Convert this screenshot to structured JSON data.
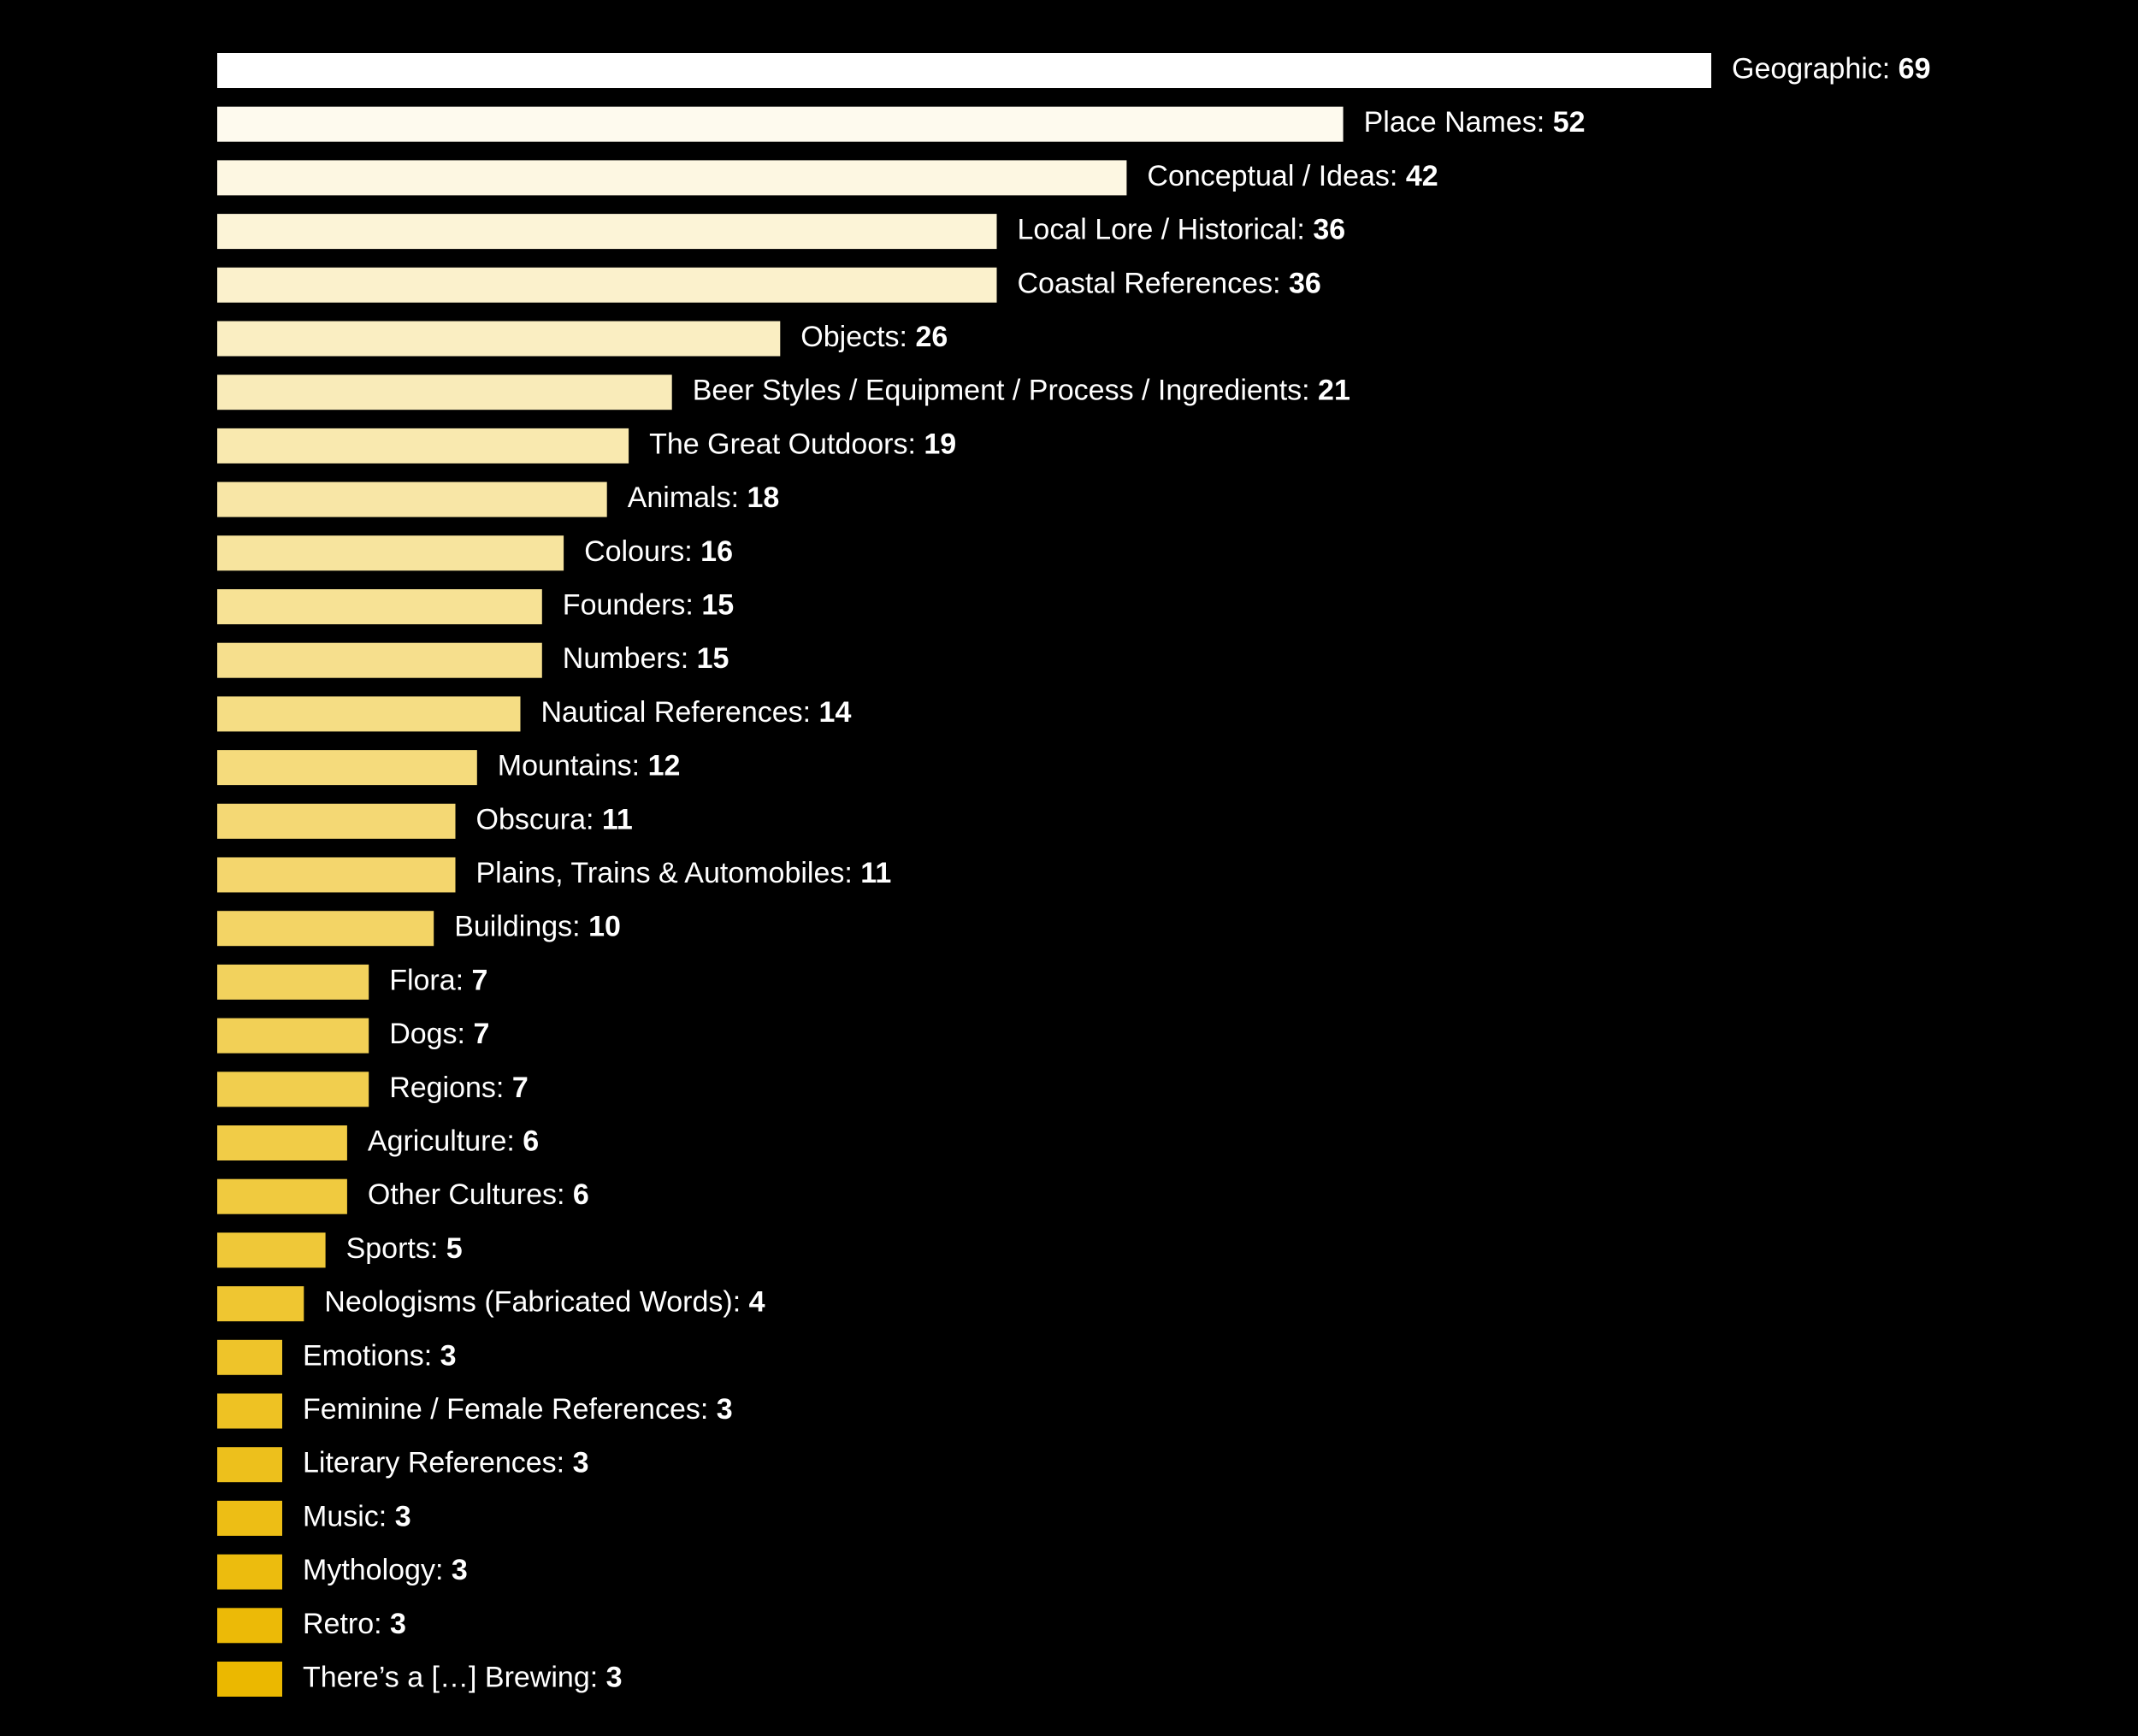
{
  "chart_data": {
    "type": "bar",
    "orientation": "horizontal",
    "title": "",
    "xlabel": "",
    "ylabel": "",
    "xlim": [
      0,
      69
    ],
    "grid": false,
    "legend": "none",
    "color_start": "#ffffff",
    "color_end": "#ebb800",
    "categories": [
      "Geographic",
      "Place Names",
      "Conceptual / Ideas",
      "Local Lore / Historical",
      "Coastal References",
      "Objects",
      "Beer Styles / Equipment / Process / Ingredients",
      "The Great Outdoors",
      "Animals",
      "Colours",
      "Founders",
      "Numbers",
      "Nautical References",
      "Mountains",
      "Obscura",
      "Plains, Trains & Automobiles",
      "Buildings",
      "Flora",
      "Dogs",
      "Regions",
      "Agriculture",
      "Other Cultures",
      "Sports",
      "Neologisms (Fabricated Words)",
      "Emotions",
      "Feminine / Female References",
      "Literary References",
      "Music",
      "Mythology",
      "Retro",
      "There’s a […] Brewing"
    ],
    "values": [
      69,
      52,
      42,
      36,
      36,
      26,
      21,
      19,
      18,
      16,
      15,
      15,
      14,
      12,
      11,
      11,
      10,
      7,
      7,
      7,
      6,
      6,
      5,
      4,
      3,
      3,
      3,
      3,
      3,
      3,
      3
    ]
  }
}
